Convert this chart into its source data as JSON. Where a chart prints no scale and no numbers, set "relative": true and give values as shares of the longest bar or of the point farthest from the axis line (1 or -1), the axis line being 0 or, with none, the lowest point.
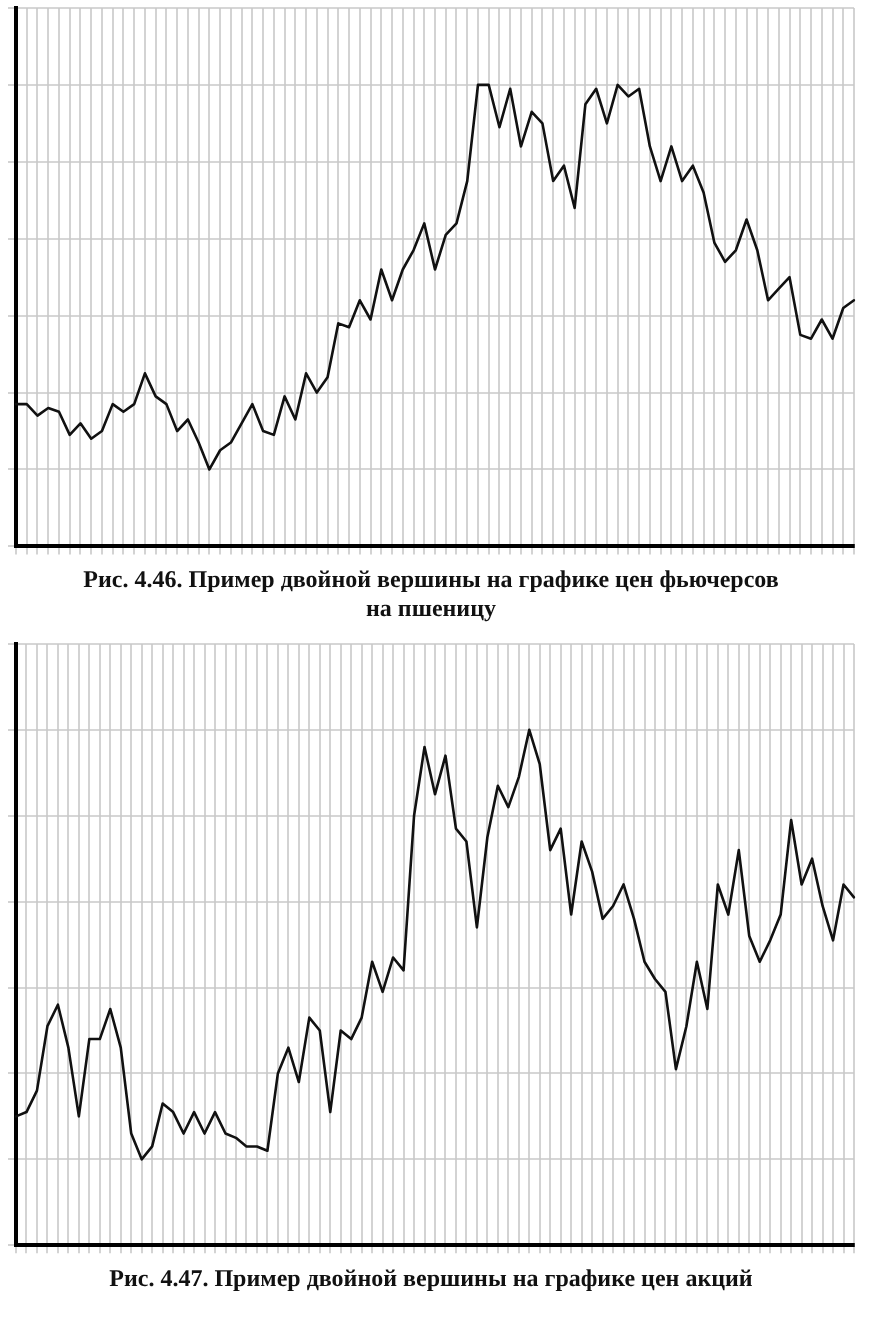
{
  "chart_data": [
    {
      "type": "line",
      "title": "Рис. 4.46. Пример двойной вершины на графике цен фьючерсов на пшеницу",
      "relative": true,
      "grid": true,
      "tick_labels": false,
      "legend": false,
      "marker": "none",
      "line_style": "solid",
      "categories": [
        null,
        null,
        null,
        null,
        null,
        null,
        null,
        null,
        null,
        null,
        null,
        null,
        null,
        null,
        null,
        null,
        null,
        null,
        null,
        null,
        null,
        null,
        null,
        null,
        null,
        null,
        null,
        null,
        null,
        null,
        null,
        null,
        null,
        null,
        null,
        null,
        null,
        null,
        null,
        null,
        null,
        null,
        null,
        null,
        null,
        null,
        null,
        null,
        null,
        null,
        null,
        null,
        null,
        null,
        null,
        null,
        null,
        null,
        null,
        null,
        null,
        null,
        null,
        null,
        null,
        null,
        null,
        null,
        null,
        null,
        null,
        null,
        null,
        null,
        null,
        null,
        null,
        null,
        null
      ],
      "series": [
        {
          "color": "#111111",
          "values": [
            0.17,
            0.17,
            0.14,
            0.16,
            0.15,
            0.09,
            0.12,
            0.08,
            0.1,
            0.17,
            0.15,
            0.17,
            0.25,
            0.19,
            0.17,
            0.1,
            0.13,
            0.07,
            0,
            0.05,
            0.07,
            0.12,
            0.17,
            0.1,
            0.09,
            0.19,
            0.13,
            0.25,
            0.2,
            0.24,
            0.38,
            0.37,
            0.44,
            0.39,
            0.52,
            0.44,
            0.52,
            0.57,
            0.64,
            0.52,
            0.61,
            0.64,
            0.75,
            1,
            1,
            0.89,
            0.99,
            0.84,
            0.93,
            0.9,
            0.75,
            0.79,
            0.68,
            0.95,
            0.99,
            0.9,
            1,
            0.97,
            0.99,
            0.84,
            0.75,
            0.84,
            0.75,
            0.79,
            0.72,
            0.59,
            0.54,
            0.57,
            0.65,
            0.57,
            0.44,
            0.47,
            0.5,
            0.35,
            0.34,
            0.39,
            0.34,
            0.42,
            0.44
          ]
        }
      ]
    },
    {
      "type": "line",
      "title": "Рис. 4.47. Пример двойной вершины на графике цен акций",
      "relative": true,
      "grid": true,
      "tick_labels": false,
      "legend": false,
      "marker": "none",
      "line_style": "solid",
      "categories": [
        null,
        null,
        null,
        null,
        null,
        null,
        null,
        null,
        null,
        null,
        null,
        null,
        null,
        null,
        null,
        null,
        null,
        null,
        null,
        null,
        null,
        null,
        null,
        null,
        null,
        null,
        null,
        null,
        null,
        null,
        null,
        null,
        null,
        null,
        null,
        null,
        null,
        null,
        null,
        null,
        null,
        null,
        null,
        null,
        null,
        null,
        null,
        null,
        null,
        null,
        null,
        null,
        null,
        null,
        null,
        null,
        null,
        null,
        null,
        null,
        null,
        null,
        null,
        null,
        null,
        null,
        null,
        null,
        null,
        null,
        null,
        null,
        null,
        null,
        null,
        null,
        null,
        null,
        null,
        null,
        null
      ],
      "series": [
        {
          "color": "#111111",
          "values": [
            0.1,
            0.11,
            0.16,
            0.31,
            0.36,
            0.26,
            0.1,
            0.28,
            0.28,
            0.35,
            0.26,
            0.06,
            0,
            0.03,
            0.13,
            0.11,
            0.06,
            0.11,
            0.06,
            0.11,
            0.06,
            0.05,
            0.03,
            0.03,
            0.02,
            0.2,
            0.26,
            0.18,
            0.33,
            0.3,
            0.11,
            0.3,
            0.28,
            0.33,
            0.46,
            0.39,
            0.47,
            0.44,
            0.8,
            0.96,
            0.85,
            0.94,
            0.77,
            0.74,
            0.54,
            0.75,
            0.87,
            0.82,
            0.89,
            1,
            0.92,
            0.72,
            0.77,
            0.57,
            0.74,
            0.67,
            0.56,
            0.59,
            0.64,
            0.56,
            0.46,
            0.42,
            0.39,
            0.21,
            0.31,
            0.46,
            0.35,
            0.64,
            0.57,
            0.72,
            0.52,
            0.46,
            0.51,
            0.57,
            0.79,
            0.64,
            0.7,
            0.59,
            0.51,
            0.64,
            0.61
          ]
        }
      ]
    }
  ]
}
